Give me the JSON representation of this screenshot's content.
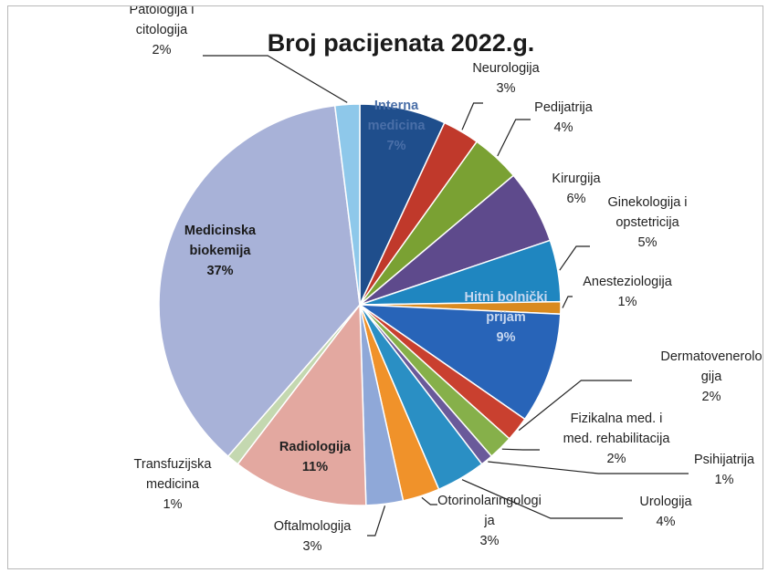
{
  "chart_data": {
    "type": "pie",
    "title": "Broj pacijenata 2022.g.",
    "slices": [
      {
        "label": "Interna medicina",
        "label_lines": [
          "Interna",
          "medicina",
          "7%"
        ],
        "value": 7,
        "value_label": "7%",
        "color": "#1f4e8c",
        "inside": true,
        "text_color": "#4a6fa8"
      },
      {
        "label": "Neurologija",
        "label_lines": [
          "Neurologija",
          "3%"
        ],
        "value": 3,
        "value_label": "3%",
        "color": "#c0392b"
      },
      {
        "label": "Pedijatrija",
        "label_lines": [
          "Pedijatrija",
          "4%"
        ],
        "value": 4,
        "value_label": "4%",
        "color": "#7aa133"
      },
      {
        "label": "Kirurgija",
        "label_lines": [
          "Kirurgija",
          "6%"
        ],
        "value": 6,
        "value_label": "6%",
        "color": "#5e4a8c"
      },
      {
        "label": "Ginekologija i opstetricija",
        "label_lines": [
          "Ginekologija i",
          "opstetricija",
          "5%"
        ],
        "value": 5,
        "value_label": "5%",
        "color": "#1f86c0"
      },
      {
        "label": "Anesteziologija",
        "label_lines": [
          "Anesteziologija",
          "1%"
        ],
        "value": 1,
        "value_label": "1%",
        "color": "#d98a1f"
      },
      {
        "label": "Hitni bolnički prijam",
        "label_lines": [
          "Hitni bolnički",
          "prijam",
          "9%"
        ],
        "value": 9,
        "value_label": "9%",
        "color": "#2864b8",
        "inside": true,
        "text_color": "#c8d8f0"
      },
      {
        "label": "Dermatovenerologija",
        "label_lines": [
          "Dermatovenerolo",
          "gija",
          "2%"
        ],
        "value": 2,
        "value_label": "2%",
        "color": "#c9402f"
      },
      {
        "label": "Fizikalna med. i med. rehabilitacija",
        "label_lines": [
          "Fizikalna med. i",
          "med. rehabilitacija",
          "2%"
        ],
        "value": 2,
        "value_label": "2%",
        "color": "#86b04a"
      },
      {
        "label": "Psihijatrija",
        "label_lines": [
          "Psihijatrija",
          "1%"
        ],
        "value": 1,
        "value_label": "1%",
        "color": "#6a5a9a"
      },
      {
        "label": "Urologija",
        "label_lines": [
          "Urologija",
          "4%"
        ],
        "value": 4,
        "value_label": "4%",
        "color": "#2a8fc4"
      },
      {
        "label": "Otorinolaringologija",
        "label_lines": [
          "Otorinolaringologi",
          "ja",
          "3%"
        ],
        "value": 3,
        "value_label": "3%",
        "color": "#f0922a"
      },
      {
        "label": "Oftalmologija",
        "label_lines": [
          "Oftalmologija",
          "3%"
        ],
        "value": 3,
        "value_label": "3%",
        "color": "#8fa8d8"
      },
      {
        "label": "Radiologija",
        "label_lines": [
          "Radiologija",
          "11%"
        ],
        "value": 11,
        "value_label": "11%",
        "color": "#e3a8a0",
        "inside": true,
        "text_color": "#222222"
      },
      {
        "label": "Transfuzijska medicina",
        "label_lines": [
          "Transfuzijska",
          "medicina",
          "1%"
        ],
        "value": 1,
        "value_label": "1%",
        "color": "#c4d8b0"
      },
      {
        "label": "Medicinska biokemija",
        "label_lines": [
          "Medicinska",
          "biokemija",
          "37%"
        ],
        "value": 37,
        "value_label": "37%",
        "color": "#a8b2d8",
        "inside": true,
        "text_color": "#1a1a1a"
      },
      {
        "label": "Patologija i citologija",
        "label_lines": [
          "Patologija i",
          "citologija",
          "2%"
        ],
        "value": 2,
        "value_label": "2%",
        "color": "#8ec8ea"
      }
    ]
  }
}
